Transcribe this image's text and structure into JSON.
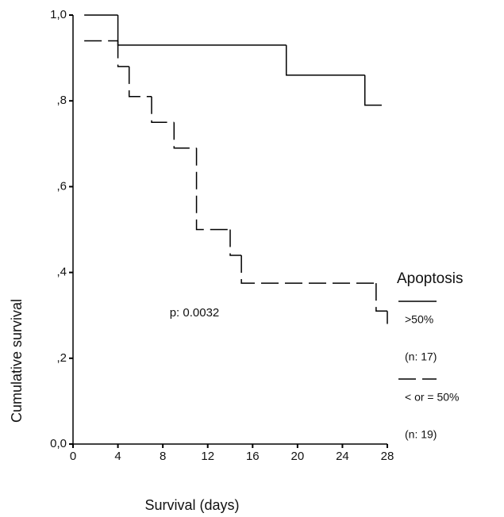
{
  "chart_data": {
    "type": "step",
    "x_label": "Survival (days)",
    "y_label": "Cumulative survival",
    "annotation": "p: 0.0032",
    "legend_title": "Apoptosis",
    "xlim": [
      0,
      28
    ],
    "xticks": [
      0,
      4,
      8,
      12,
      16,
      20,
      24,
      28
    ],
    "ylim": [
      0,
      1
    ],
    "yticks": [
      {
        "value": 0,
        "label": "0,0"
      },
      {
        "value": 0.2,
        "label": ",2"
      },
      {
        "value": 0.4,
        "label": ",4"
      },
      {
        "value": 0.6,
        "label": ",6"
      },
      {
        "value": 0.8,
        "label": ",8"
      },
      {
        "value": 1,
        "label": "1,0"
      }
    ],
    "series": [
      {
        "name": ">50%",
        "note": "(n: 17)",
        "color": "#000000",
        "dash": "solid",
        "x": [
          1,
          4,
          19,
          26,
          27.5
        ],
        "values": [
          1.0,
          0.93,
          0.86,
          0.79,
          0.79
        ]
      },
      {
        "name": "< or = 50%",
        "note": "(n: 19)",
        "color": "#000000",
        "dash": "dashed",
        "x": [
          1,
          4,
          5,
          7,
          9,
          11,
          14,
          15,
          27,
          28
        ],
        "values": [
          0.94,
          0.88,
          0.81,
          0.75,
          0.69,
          0.5,
          0.44,
          0.375,
          0.31,
          0.28
        ]
      }
    ]
  }
}
